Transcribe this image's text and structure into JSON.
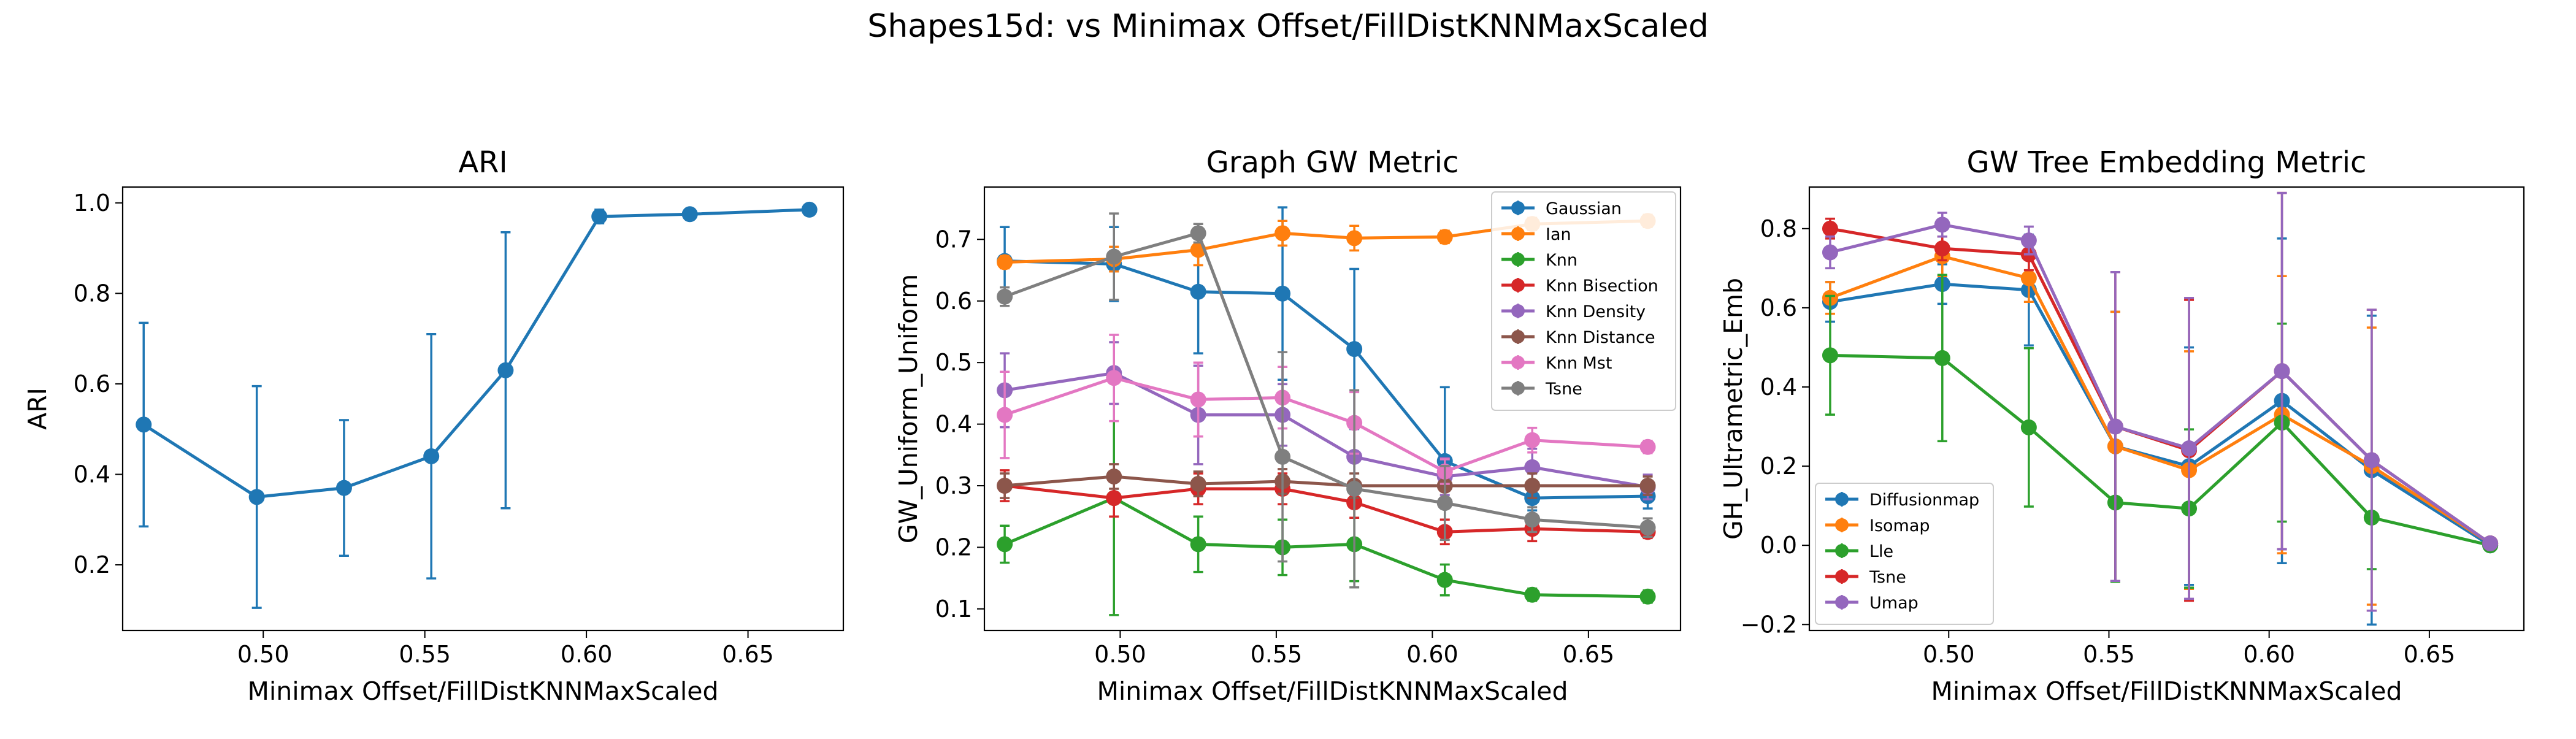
{
  "figure": {
    "suptitle": "Shapes15d: vs Minimax Offset/FillDistKNNMaxScaled"
  },
  "colors": {
    "blue": "#1f77b4",
    "orange": "#ff7f0e",
    "green": "#2ca02c",
    "red": "#d62728",
    "purple": "#9467bd",
    "brown": "#8c564b",
    "pink": "#e377c2",
    "gray": "#7f7f7f"
  },
  "chart_data": [
    {
      "type": "line",
      "title": "ARI",
      "xlabel": "Minimax Offset/FillDistKNNMaxScaled",
      "ylabel": "ARI",
      "xlim": [
        0.4565,
        0.6795
      ],
      "ylim": [
        0.055,
        1.035
      ],
      "xticks": [
        0.5,
        0.55,
        0.6,
        0.65
      ],
      "yticks": [
        0.2,
        0.4,
        0.6,
        0.8,
        1.0
      ],
      "legend": null,
      "series": [
        {
          "color": "#1f77b4",
          "x": [
            0.463,
            0.498,
            0.525,
            0.552,
            0.575,
            0.604,
            0.632,
            0.669
          ],
          "y": [
            0.51,
            0.35,
            0.37,
            0.44,
            0.63,
            0.97,
            0.975,
            0.985
          ],
          "err": [
            0.225,
            0.245,
            0.15,
            0.27,
            0.305,
            0.015,
            0.008,
            0.005
          ]
        }
      ]
    },
    {
      "type": "line",
      "title": "Graph GW Metric",
      "xlabel": "Minimax Offset/FillDistKNNMaxScaled",
      "ylabel": "GW_Uniform_Uniform",
      "xlim": [
        0.4565,
        0.6795
      ],
      "ylim": [
        0.065,
        0.785
      ],
      "xticks": [
        0.5,
        0.55,
        0.6,
        0.65
      ],
      "yticks": [
        0.1,
        0.2,
        0.3,
        0.4,
        0.5,
        0.6,
        0.7
      ],
      "legend": "top-right",
      "series": [
        {
          "name": "Gaussian",
          "color": "#1f77b4",
          "x": [
            0.463,
            0.498,
            0.525,
            0.552,
            0.575,
            0.604,
            0.632,
            0.669
          ],
          "y": [
            0.665,
            0.66,
            0.615,
            0.612,
            0.522,
            0.34,
            0.28,
            0.283
          ],
          "err": [
            0.055,
            0.06,
            0.1,
            0.14,
            0.13,
            0.12,
            0.02,
            0.02
          ]
        },
        {
          "name": "Ian",
          "color": "#ff7f0e",
          "x": [
            0.463,
            0.498,
            0.525,
            0.552,
            0.575,
            0.604,
            0.632,
            0.669
          ],
          "y": [
            0.663,
            0.668,
            0.683,
            0.71,
            0.702,
            0.704,
            0.725,
            0.73
          ],
          "err": [
            0.01,
            0.02,
            0.025,
            0.02,
            0.02,
            0.01,
            0.01,
            0.01
          ]
        },
        {
          "name": "Knn",
          "color": "#2ca02c",
          "x": [
            0.463,
            0.498,
            0.525,
            0.552,
            0.575,
            0.604,
            0.632,
            0.669
          ],
          "y": [
            0.205,
            0.28,
            0.205,
            0.2,
            0.205,
            0.147,
            0.123,
            0.12
          ],
          "err": [
            0.03,
            0.19,
            0.045,
            0.045,
            0.06,
            0.025,
            0.01,
            0.01
          ]
        },
        {
          "name": "Knn Bisection",
          "color": "#d62728",
          "x": [
            0.463,
            0.498,
            0.525,
            0.552,
            0.575,
            0.604,
            0.632,
            0.669
          ],
          "y": [
            0.3,
            0.28,
            0.295,
            0.295,
            0.273,
            0.225,
            0.23,
            0.225
          ],
          "err": [
            0.025,
            0.03,
            0.025,
            0.025,
            0.025,
            0.02,
            0.02,
            0.01
          ]
        },
        {
          "name": "Knn Density",
          "color": "#9467bd",
          "x": [
            0.463,
            0.498,
            0.525,
            0.552,
            0.575,
            0.604,
            0.632,
            0.669
          ],
          "y": [
            0.455,
            0.483,
            0.415,
            0.415,
            0.347,
            0.315,
            0.33,
            0.298
          ],
          "err": [
            0.06,
            0.05,
            0.08,
            0.05,
            0.06,
            0.03,
            0.03,
            0.02
          ]
        },
        {
          "name": "Knn Distance",
          "color": "#8c564b",
          "x": [
            0.463,
            0.498,
            0.525,
            0.552,
            0.575,
            0.604,
            0.632,
            0.669
          ],
          "y": [
            0.3,
            0.315,
            0.303,
            0.307,
            0.3,
            0.3,
            0.3,
            0.3
          ],
          "err": [
            0.02,
            0.02,
            0.02,
            0.02,
            0.02,
            0.02,
            0.02,
            0.015
          ]
        },
        {
          "name": "Knn Mst",
          "color": "#e377c2",
          "x": [
            0.463,
            0.498,
            0.525,
            0.552,
            0.575,
            0.604,
            0.632,
            0.669
          ],
          "y": [
            0.415,
            0.475,
            0.44,
            0.443,
            0.402,
            0.323,
            0.374,
            0.363
          ],
          "err": [
            0.07,
            0.07,
            0.06,
            0.05,
            0.05,
            0.02,
            0.02,
            0.01
          ]
        },
        {
          "name": "Tsne",
          "color": "#7f7f7f",
          "x": [
            0.463,
            0.498,
            0.525,
            0.552,
            0.575,
            0.604,
            0.632,
            0.669
          ],
          "y": [
            0.607,
            0.672,
            0.71,
            0.347,
            0.295,
            0.272,
            0.245,
            0.232
          ],
          "err": [
            0.015,
            0.07,
            0.015,
            0.17,
            0.16,
            0.06,
            0.02,
            0.015
          ]
        }
      ]
    },
    {
      "type": "line",
      "title": "GW Tree Embedding Metric",
      "xlabel": "Minimax Offset/FillDistKNNMaxScaled",
      "ylabel": "GH_Ultrametric_Emb",
      "xlim": [
        0.4565,
        0.6795
      ],
      "ylim": [
        -0.215,
        0.905
      ],
      "xticks": [
        0.5,
        0.55,
        0.6,
        0.65
      ],
      "yticks": [
        -0.2,
        0.0,
        0.2,
        0.4,
        0.6,
        0.8
      ],
      "legend": "lower-left",
      "series": [
        {
          "name": "Diffusionmap",
          "color": "#1f77b4",
          "x": [
            0.463,
            0.498,
            0.525,
            0.552,
            0.575,
            0.604,
            0.632,
            0.669
          ],
          "y": [
            0.615,
            0.66,
            0.645,
            0.25,
            0.2,
            0.365,
            0.19,
            0.0
          ],
          "err": [
            0.05,
            0.05,
            0.14,
            0.34,
            0.3,
            0.41,
            0.39,
            0.005
          ]
        },
        {
          "name": "Isomap",
          "color": "#ff7f0e",
          "x": [
            0.463,
            0.498,
            0.525,
            0.552,
            0.575,
            0.604,
            0.632,
            0.669
          ],
          "y": [
            0.625,
            0.73,
            0.675,
            0.25,
            0.19,
            0.33,
            0.2,
            0.005
          ],
          "err": [
            0.04,
            0.05,
            0.06,
            0.34,
            0.3,
            0.35,
            0.35,
            0.005
          ]
        },
        {
          "name": "Lle",
          "color": "#2ca02c",
          "x": [
            0.463,
            0.498,
            0.525,
            0.552,
            0.575,
            0.604,
            0.632,
            0.669
          ],
          "y": [
            0.48,
            0.473,
            0.298,
            0.108,
            0.093,
            0.31,
            0.07,
            0.0
          ],
          "err": [
            0.15,
            0.21,
            0.2,
            0.2,
            0.2,
            0.25,
            0.13,
            0.005
          ]
        },
        {
          "name": "Tsne",
          "color": "#d62728",
          "x": [
            0.463,
            0.498,
            0.525,
            0.552,
            0.575,
            0.604,
            0.632,
            0.669
          ],
          "y": [
            0.8,
            0.75,
            0.735,
            0.3,
            0.24,
            0.44,
            0.215,
            0.005
          ],
          "err": [
            0.025,
            0.03,
            0.04,
            0.39,
            0.38,
            0.45,
            0.38,
            0.005
          ]
        },
        {
          "name": "Umap",
          "color": "#9467bd",
          "x": [
            0.463,
            0.498,
            0.525,
            0.552,
            0.575,
            0.604,
            0.632,
            0.669
          ],
          "y": [
            0.74,
            0.81,
            0.77,
            0.3,
            0.245,
            0.44,
            0.215,
            0.005
          ],
          "err": [
            0.04,
            0.03,
            0.035,
            0.39,
            0.38,
            0.45,
            0.38,
            0.005
          ]
        }
      ]
    }
  ]
}
